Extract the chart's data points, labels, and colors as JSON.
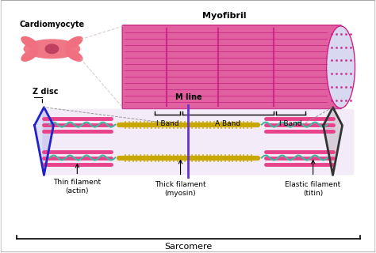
{
  "bg_color": "#f5f5f5",
  "border_color": "#aaaaaa",
  "title_cardiomyocyte": "Cardiomyocyte",
  "title_myofibril": "Myofibril",
  "label_zdisc": "Z disc",
  "label_mline": "M line",
  "label_iband1": "I Band",
  "label_aband": "A Band",
  "label_iband2": "I Band",
  "label_thin": "Thin filament\n(actin)",
  "label_thick": "Thick filament\n(myosin)",
  "label_elastic": "Elastic filament\n(titin)",
  "label_sarcomere": "Sarcomere",
  "pink_color": "#e8438a",
  "myosin_color": "#c8a800",
  "titin_color": "#40b8a0",
  "zdisc_color": "#2222cc",
  "mline_color": "#6633cc",
  "cell_color": "#f07080",
  "cell_dark": "#c04060",
  "myofibril_outer": "#e060a0",
  "myofibril_stripe": "#cc2288",
  "lavender_bg": "#e8d8f0"
}
